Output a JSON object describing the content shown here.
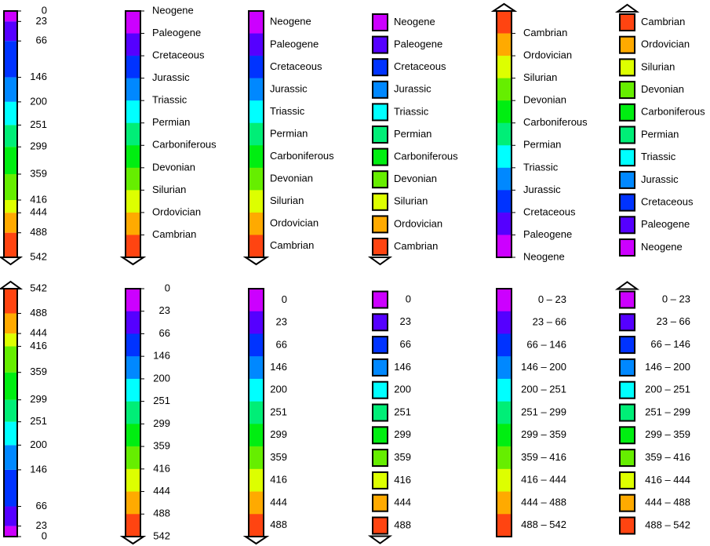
{
  "colors": [
    "#cc00ff",
    "#5500ff",
    "#0033ff",
    "#0088ff",
    "#00ffff",
    "#00ee77",
    "#00ee11",
    "#66ee00",
    "#ddff00",
    "#ffaa00",
    "#ff4411"
  ],
  "ages": [
    "0",
    "23",
    "66",
    "146",
    "200",
    "251",
    "299",
    "359",
    "416",
    "444",
    "488",
    "542"
  ],
  "periods": [
    "Neogene",
    "Paleogene",
    "Cretaceous",
    "Jurassic",
    "Triassic",
    "Permian",
    "Carboniferous",
    "Devonian",
    "Silurian",
    "Ordovician",
    "Cambrian"
  ],
  "ranges": [
    "0 – 23",
    "23 – 66",
    "66 – 146",
    "146 – 200",
    "200 – 251",
    "251 – 299",
    "299 – 359",
    "359 – 416",
    "416 – 444",
    "444 – 488",
    "488 – 542"
  ]
}
